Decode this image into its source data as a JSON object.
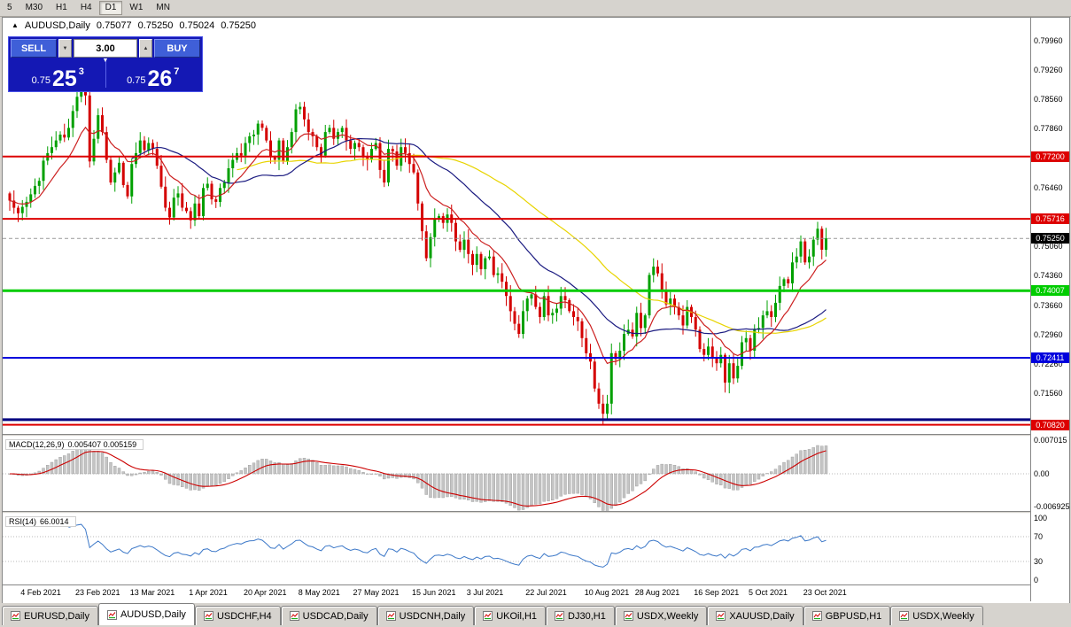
{
  "toolbar": {
    "timeframes": [
      {
        "label": "5",
        "active": false
      },
      {
        "label": "M30",
        "active": false
      },
      {
        "label": "H1",
        "active": false
      },
      {
        "label": "H4",
        "active": false
      },
      {
        "label": "D1",
        "active": true
      },
      {
        "label": "W1",
        "active": false
      },
      {
        "label": "MN",
        "active": false
      }
    ]
  },
  "chart_header": {
    "symbol_period": "AUDUSD,Daily",
    "open": "0.75077",
    "high": "0.75250",
    "low": "0.75024",
    "close": "0.75250"
  },
  "trade_panel": {
    "sell_label": "SELL",
    "buy_label": "BUY",
    "lot_value": "3.00",
    "bid": {
      "base": "0.75",
      "big": "25",
      "sup": "3"
    },
    "ask": {
      "base": "0.75",
      "big": "26",
      "sup": "7"
    }
  },
  "indicators": {
    "macd": {
      "name": "MACD(12,26,9)",
      "values": "0.005407 0.005159"
    },
    "rsi": {
      "name": "RSI(14)",
      "value": "66.0014"
    }
  },
  "tabs": [
    {
      "label": "EURUSD,Daily",
      "active": false
    },
    {
      "label": "AUDUSD,Daily",
      "active": true
    },
    {
      "label": "USDCHF,H4",
      "active": false
    },
    {
      "label": "USDCAD,Daily",
      "active": false
    },
    {
      "label": "USDCNH,Daily",
      "active": false
    },
    {
      "label": "UKOil,H1",
      "active": false
    },
    {
      "label": "DJ30,H1",
      "active": false
    },
    {
      "label": "USDX,Weekly",
      "active": false
    },
    {
      "label": "XAUUSD,Daily",
      "active": false
    },
    {
      "label": "GBPUSD,H1",
      "active": false
    },
    {
      "label": "USDX,Weekly",
      "active": false
    }
  ],
  "chart_data": {
    "type": "candlestick",
    "symbol": "AUDUSD",
    "timeframe": "Daily",
    "price_range": [
      0.706,
      0.805
    ],
    "first_open": 0.7632,
    "closes": [
      0.7615,
      0.7598,
      0.7585,
      0.76,
      0.7612,
      0.763,
      0.765,
      0.7662,
      0.771,
      0.7728,
      0.7742,
      0.7758,
      0.7772,
      0.7765,
      0.7788,
      0.7828,
      0.7862,
      0.7892,
      0.7865,
      0.7708,
      0.7762,
      0.7818,
      0.7778,
      0.7712,
      0.7658,
      0.7682,
      0.7705,
      0.7652,
      0.7625,
      0.7702,
      0.7728,
      0.7758,
      0.7735,
      0.7752,
      0.7738,
      0.7698,
      0.7648,
      0.7598,
      0.7575,
      0.7622,
      0.7632,
      0.7598,
      0.759,
      0.7568,
      0.7608,
      0.7578,
      0.7645,
      0.7655,
      0.7618,
      0.7612,
      0.7645,
      0.7658,
      0.7692,
      0.7712,
      0.7728,
      0.7722,
      0.7752,
      0.7768,
      0.7772,
      0.7798,
      0.7788,
      0.7758,
      0.7718,
      0.7712,
      0.7758,
      0.7708,
      0.7742,
      0.7778,
      0.7832,
      0.7838,
      0.7808,
      0.7778,
      0.7768,
      0.7742,
      0.7722,
      0.7778,
      0.7788,
      0.7762,
      0.7778,
      0.7788,
      0.7758,
      0.7738,
      0.7752,
      0.7742,
      0.7718,
      0.7712,
      0.7738,
      0.7752,
      0.7688,
      0.7658,
      0.7738,
      0.7732,
      0.7698,
      0.7742,
      0.7728,
      0.7702,
      0.7682,
      0.7608,
      0.7542,
      0.7478,
      0.7528,
      0.7572,
      0.7578,
      0.7562,
      0.7582,
      0.7562,
      0.7518,
      0.7498,
      0.7522,
      0.7488,
      0.7462,
      0.7488,
      0.7452,
      0.7478,
      0.7482,
      0.7438,
      0.7442,
      0.7422,
      0.7388,
      0.7352,
      0.7322,
      0.7298,
      0.7352,
      0.7382,
      0.7392,
      0.7362,
      0.7338,
      0.7388,
      0.7342,
      0.7348,
      0.7358,
      0.7388,
      0.7378,
      0.7352,
      0.7338,
      0.7328,
      0.7288,
      0.7252,
      0.7232,
      0.7168,
      0.7132,
      0.7108,
      0.7132,
      0.7252,
      0.7238,
      0.7258,
      0.7298,
      0.7308,
      0.7292,
      0.7348,
      0.7312,
      0.7342,
      0.7438,
      0.7458,
      0.7442,
      0.7398,
      0.7368,
      0.7382,
      0.7362,
      0.7342,
      0.7318,
      0.7362,
      0.7338,
      0.7308,
      0.7262,
      0.7248,
      0.7268,
      0.7242,
      0.7228,
      0.7248,
      0.7182,
      0.7228,
      0.7192,
      0.7222,
      0.7278,
      0.7288,
      0.7258,
      0.7308,
      0.7312,
      0.7342,
      0.7352,
      0.7338,
      0.7372,
      0.7412,
      0.7428,
      0.7418,
      0.7468,
      0.7482,
      0.7518,
      0.7468,
      0.7482,
      0.7522,
      0.7548,
      0.7498,
      0.7525
    ],
    "date_labels": [
      {
        "label": "4 Feb 2021",
        "i": 3
      },
      {
        "label": "23 Feb 2021",
        "i": 16
      },
      {
        "label": "13 Mar 2021",
        "i": 29
      },
      {
        "label": "1 Apr 2021",
        "i": 43
      },
      {
        "label": "20 Apr 2021",
        "i": 56
      },
      {
        "label": "8 May 2021",
        "i": 69
      },
      {
        "label": "27 May 2021",
        "i": 82
      },
      {
        "label": "15 Jun 2021",
        "i": 96
      },
      {
        "label": "3 Jul 2021",
        "i": 109
      },
      {
        "label": "22 Jul 2021",
        "i": 123
      },
      {
        "label": "10 Aug 2021",
        "i": 137
      },
      {
        "label": "28 Aug 2021",
        "i": 149
      },
      {
        "label": "16 Sep 2021",
        "i": 163
      },
      {
        "label": "5 Oct 2021",
        "i": 176
      },
      {
        "label": "23 Oct 2021",
        "i": 189
      }
    ],
    "price_ticks": [
      {
        "label": "0.79960",
        "p": 0.7996
      },
      {
        "label": "0.79260",
        "p": 0.7926
      },
      {
        "label": "0.78560",
        "p": 0.7856
      },
      {
        "label": "0.77860",
        "p": 0.7786
      },
      {
        "label": "0.77160",
        "p": 0.7716
      },
      {
        "label": "0.76460",
        "p": 0.7646
      },
      {
        "label": "0.75760",
        "p": 0.7576
      },
      {
        "label": "0.75060",
        "p": 0.7506
      },
      {
        "label": "0.74360",
        "p": 0.7436
      },
      {
        "label": "0.73660",
        "p": 0.7366
      },
      {
        "label": "0.72960",
        "p": 0.7296
      },
      {
        "label": "0.72260",
        "p": 0.7226
      },
      {
        "label": "0.71560",
        "p": 0.7156
      },
      {
        "label": "0.70860",
        "p": 0.7086
      }
    ],
    "levels": [
      {
        "price": 0.772,
        "label": "0.77200",
        "color": "#dd0000",
        "width": 2
      },
      {
        "price": 0.75716,
        "label": "0.75716",
        "color": "#dd0000",
        "width": 2
      },
      {
        "price": 0.74007,
        "label": "0.74007",
        "color": "#00cc00",
        "width": 3
      },
      {
        "price": 0.72411,
        "label": "0.72411",
        "color": "#0000dd",
        "width": 2
      },
      {
        "price": 0.7094,
        "label": null,
        "color": "#000080",
        "width": 3
      },
      {
        "price": 0.7082,
        "label": "0.70820",
        "color": "#dd0000",
        "width": 2
      }
    ],
    "current_price": {
      "price": 0.7525,
      "label": "0.75250",
      "badge_color": "#000000"
    },
    "ma_settings": [
      {
        "type": "sma",
        "period": 55,
        "color": "#e8d400"
      },
      {
        "type": "sma",
        "period": 30,
        "color": "#1a1a80"
      },
      {
        "type": "ema",
        "period": 12,
        "color": "#cc2020"
      }
    ],
    "candle_colors": {
      "up": "#00a000",
      "down": "#d40000"
    },
    "macd_panel": {
      "ticks": [
        {
          "label": "0.007015",
          "v": 0.007015
        },
        {
          "label": "0.00",
          "v": 0
        },
        {
          "label": "-0.006925",
          "v": -0.006925
        }
      ],
      "range": [
        -0.0078,
        0.0078
      ],
      "hist_color": "#c4c4c4",
      "signal_color": "#cc0000"
    },
    "rsi_panel": {
      "ticks": [
        {
          "label": "100",
          "v": 100
        },
        {
          "label": "70",
          "v": 70
        },
        {
          "label": "30",
          "v": 30
        },
        {
          "label": "0",
          "v": 0
        }
      ],
      "levels": [
        70,
        30
      ],
      "line_color": "#3c78c8"
    }
  }
}
